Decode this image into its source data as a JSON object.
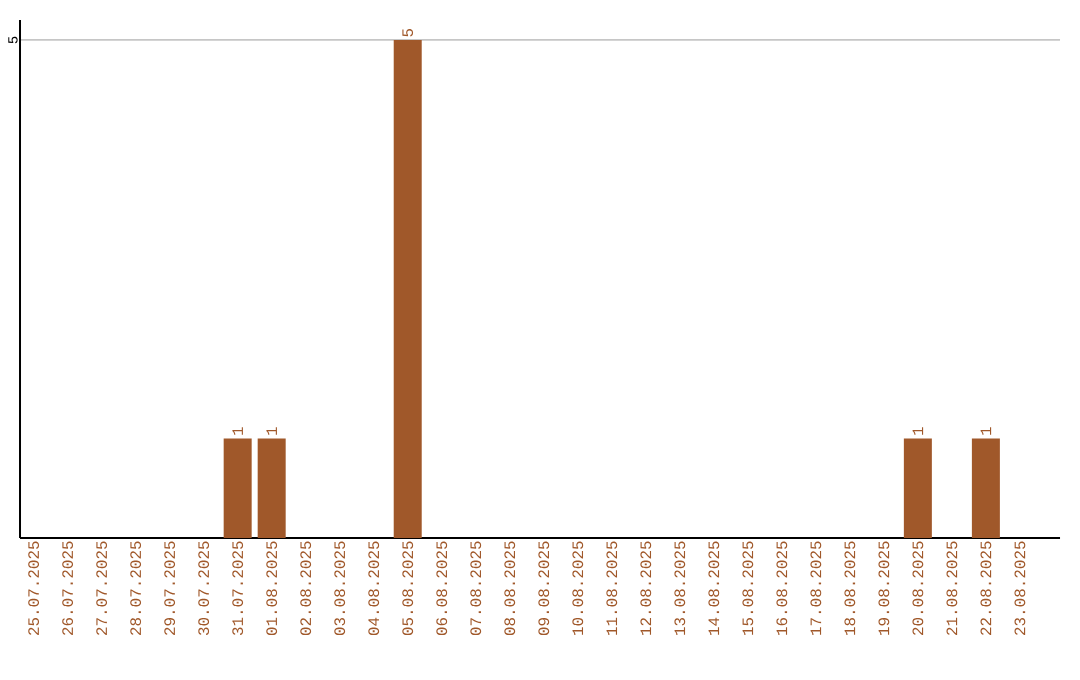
{
  "chart_data": {
    "type": "bar",
    "categories": [
      "25.07.2025",
      "26.07.2025",
      "27.07.2025",
      "28.07.2025",
      "29.07.2025",
      "30.07.2025",
      "31.07.2025",
      "01.08.2025",
      "02.08.2025",
      "03.08.2025",
      "04.08.2025",
      "05.08.2025",
      "06.08.2025",
      "07.08.2025",
      "08.08.2025",
      "09.08.2025",
      "10.08.2025",
      "11.08.2025",
      "12.08.2025",
      "13.08.2025",
      "14.08.2025",
      "15.08.2025",
      "16.08.2025",
      "17.08.2025",
      "18.08.2025",
      "19.08.2025",
      "20.08.2025",
      "21.08.2025",
      "22.08.2025",
      "23.08.2025"
    ],
    "values": [
      0,
      0,
      0,
      0,
      0,
      0,
      1,
      1,
      0,
      0,
      0,
      5,
      0,
      0,
      0,
      0,
      0,
      0,
      0,
      0,
      0,
      0,
      0,
      0,
      0,
      0,
      1,
      0,
      1,
      0
    ],
    "value_labels": [
      null,
      null,
      null,
      null,
      null,
      null,
      "1",
      "1",
      null,
      null,
      null,
      "5",
      null,
      null,
      null,
      null,
      null,
      null,
      null,
      null,
      null,
      null,
      null,
      null,
      null,
      null,
      "1",
      null,
      "1",
      null
    ],
    "color": "#a0582a",
    "ylim": [
      0,
      5.2
    ],
    "yticks": [
      5
    ],
    "grid": "y"
  }
}
